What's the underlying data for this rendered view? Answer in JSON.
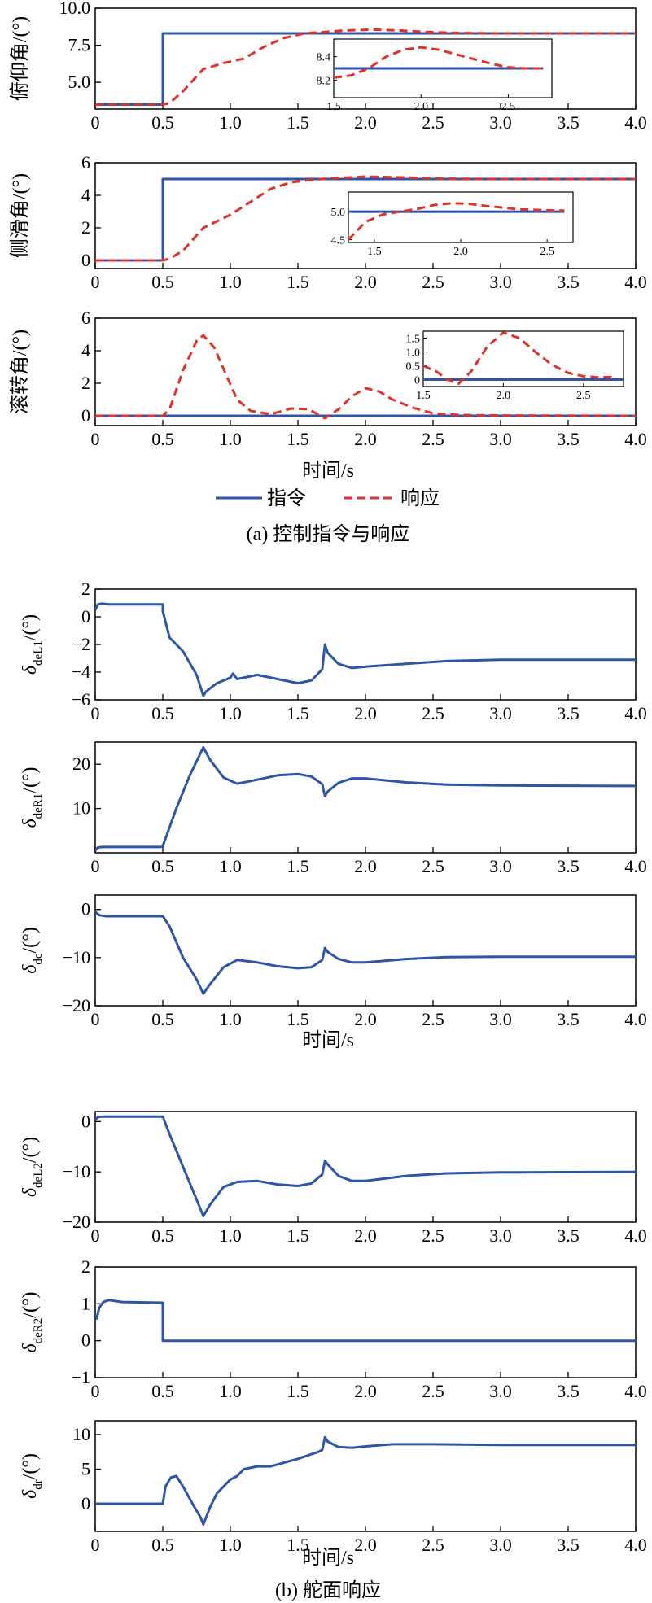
{
  "colors": {
    "command": "#2e56a6",
    "response": "#e0312b",
    "axis": "#000000"
  },
  "figure_a": {
    "caption": "(a) 控制指令与响应",
    "xlabel": "时间/s",
    "legend": {
      "command": "指令",
      "response": "响应"
    }
  },
  "figure_b": {
    "caption": "(b) 舵面响应",
    "xlabel_1": "时间/s",
    "xlabel_2": "时间/s"
  },
  "chart_data": [
    {
      "type": "line",
      "ylabel": "俯仰角/(°)",
      "xlim": [
        0,
        4
      ],
      "ylim": [
        3.2,
        10.0
      ],
      "yticks": [
        5.0,
        7.5,
        10.0
      ],
      "ytick_labels": [
        "5.0",
        "7.5",
        "10.0"
      ],
      "xticks": [
        0,
        0.5,
        1.0,
        1.5,
        2.0,
        2.5,
        3.0,
        3.5,
        4.0
      ],
      "xtick_labels": [
        "0",
        "0.5",
        "1.0",
        "1.5",
        "2.0",
        "2.5",
        "3.0",
        "3.5",
        "4.0"
      ],
      "series": [
        {
          "name": "指令",
          "style": "solid",
          "x": [
            0,
            0.5,
            0.5,
            4.0
          ],
          "y": [
            3.5,
            3.5,
            8.3,
            8.3
          ]
        },
        {
          "name": "响应",
          "style": "dashed",
          "x": [
            0,
            0.5,
            0.55,
            0.65,
            0.8,
            0.95,
            1.1,
            1.25,
            1.4,
            1.55,
            1.7,
            1.85,
            2.05,
            2.25,
            2.45,
            2.7,
            3.0,
            3.5,
            4.0
          ],
          "y": [
            3.5,
            3.5,
            3.6,
            4.4,
            5.9,
            6.3,
            6.6,
            7.4,
            8.0,
            8.3,
            8.4,
            8.5,
            8.55,
            8.5,
            8.4,
            8.32,
            8.3,
            8.3,
            8.3
          ]
        }
      ],
      "inset": {
        "xlim": [
          1.5,
          2.75
        ],
        "ylim": [
          8.05,
          8.55
        ],
        "xticks": [
          1.5,
          2.0,
          2.5
        ],
        "xtick_labels": [
          "1.5",
          "2.0",
          "2.5"
        ],
        "yticks": [
          8.2,
          8.4
        ],
        "ytick_labels": [
          "8.2",
          "8.4"
        ],
        "series": [
          {
            "style": "solid",
            "x": [
              1.5,
              2.7
            ],
            "y": [
              8.3,
              8.3
            ]
          },
          {
            "style": "dashed",
            "x": [
              1.5,
              1.6,
              1.7,
              1.8,
              1.9,
              2.0,
              2.1,
              2.2,
              2.3,
              2.4,
              2.5,
              2.6,
              2.7
            ],
            "y": [
              8.22,
              8.24,
              8.3,
              8.4,
              8.46,
              8.48,
              8.46,
              8.42,
              8.38,
              8.34,
              8.31,
              8.3,
              8.3
            ]
          }
        ]
      }
    },
    {
      "type": "line",
      "ylabel": "侧滑角/(°)",
      "xlim": [
        0,
        4
      ],
      "ylim": [
        -0.5,
        6
      ],
      "yticks": [
        0,
        2,
        4,
        6
      ],
      "ytick_labels": [
        "0",
        "2",
        "4",
        "6"
      ],
      "xticks": [
        0,
        0.5,
        1.0,
        1.5,
        2.0,
        2.5,
        3.0,
        3.5,
        4.0
      ],
      "xtick_labels": [
        "0",
        "0.5",
        "1.0",
        "1.5",
        "2.0",
        "2.5",
        "3.0",
        "3.5",
        "4.0"
      ],
      "series": [
        {
          "name": "指令",
          "style": "solid",
          "x": [
            0,
            0.5,
            0.5,
            4.0
          ],
          "y": [
            0,
            0,
            5.0,
            5.0
          ]
        },
        {
          "name": "响应",
          "style": "dashed",
          "x": [
            0,
            0.5,
            0.55,
            0.65,
            0.8,
            1.0,
            1.15,
            1.3,
            1.45,
            1.6,
            1.75,
            1.9,
            2.0,
            2.15,
            2.35,
            2.6,
            3.0,
            4.0
          ],
          "y": [
            0,
            0,
            0.1,
            0.6,
            2.0,
            2.8,
            3.6,
            4.4,
            4.8,
            4.95,
            5.05,
            5.1,
            5.15,
            5.12,
            5.08,
            5.02,
            5.0,
            5.0
          ]
        }
      ],
      "inset": {
        "xlim": [
          1.35,
          2.65
        ],
        "ylim": [
          4.45,
          5.35
        ],
        "xticks": [
          1.5,
          2.0,
          2.5
        ],
        "xtick_labels": [
          "1.5",
          "2.0",
          "2.5"
        ],
        "yticks": [
          4.5,
          5.0
        ],
        "ytick_labels": [
          "4.5",
          "5.0"
        ],
        "series": [
          {
            "style": "solid",
            "x": [
              1.35,
              2.6
            ],
            "y": [
              5.0,
              5.0
            ]
          },
          {
            "style": "dashed",
            "x": [
              1.35,
              1.45,
              1.55,
              1.65,
              1.75,
              1.85,
              1.95,
              2.05,
              2.15,
              2.25,
              2.35,
              2.45,
              2.55,
              2.6
            ],
            "y": [
              4.5,
              4.82,
              4.95,
              5.0,
              5.05,
              5.12,
              5.15,
              5.14,
              5.1,
              5.07,
              5.04,
              5.03,
              5.02,
              5.02
            ]
          }
        ]
      }
    },
    {
      "type": "line",
      "ylabel": "滚转角/(°)",
      "xlim": [
        0,
        4
      ],
      "ylim": [
        -0.6,
        6
      ],
      "yticks": [
        0,
        2,
        4,
        6
      ],
      "ytick_labels": [
        "0",
        "2",
        "4",
        "6"
      ],
      "xticks": [
        0,
        0.5,
        1.0,
        1.5,
        2.0,
        2.5,
        3.0,
        3.5,
        4.0
      ],
      "xtick_labels": [
        "0",
        "0.5",
        "1.0",
        "1.5",
        "2.0",
        "2.5",
        "3.0",
        "3.5",
        "4.0"
      ],
      "series": [
        {
          "name": "指令",
          "style": "solid",
          "x": [
            0,
            4.0
          ],
          "y": [
            0,
            0
          ]
        },
        {
          "name": "响应",
          "style": "dashed",
          "x": [
            0,
            0.5,
            0.55,
            0.65,
            0.75,
            0.8,
            0.88,
            0.97,
            1.05,
            1.15,
            1.3,
            1.45,
            1.58,
            1.7,
            1.8,
            1.9,
            2.0,
            2.1,
            2.2,
            2.35,
            2.5,
            2.7,
            3.0,
            4.0
          ],
          "y": [
            0,
            0,
            0.4,
            2.8,
            4.6,
            4.95,
            4.2,
            2.5,
            1.0,
            0.3,
            0.1,
            0.45,
            0.4,
            -0.15,
            0.4,
            1.2,
            1.7,
            1.5,
            1.0,
            0.5,
            0.15,
            0.05,
            0.02,
            0
          ]
        }
      ],
      "inset": {
        "xlim": [
          1.5,
          2.75
        ],
        "ylim": [
          -0.25,
          1.75
        ],
        "xticks": [
          1.5,
          2.0,
          2.5
        ],
        "xtick_labels": [
          "1.5",
          "2.0",
          "2.5"
        ],
        "yticks": [
          0,
          0.5,
          1.0,
          1.5
        ],
        "ytick_labels": [
          "0",
          "0.5",
          "1.0",
          "1.5"
        ],
        "series": [
          {
            "style": "solid",
            "x": [
              1.5,
              2.75
            ],
            "y": [
              0,
              0
            ]
          },
          {
            "style": "dashed",
            "x": [
              1.5,
              1.58,
              1.65,
              1.72,
              1.8,
              1.9,
              2.0,
              2.1,
              2.2,
              2.3,
              2.4,
              2.5,
              2.6,
              2.7
            ],
            "y": [
              0.5,
              0.3,
              0.0,
              -0.15,
              0.3,
              1.2,
              1.7,
              1.5,
              1.0,
              0.55,
              0.25,
              0.12,
              0.08,
              0.1
            ]
          }
        ]
      }
    },
    {
      "type": "line",
      "ylabel_symbol": "δ",
      "ylabel_sub": "deL1",
      "ylabel_unit": "/(°)",
      "xlim": [
        0,
        4
      ],
      "ylim": [
        -6,
        2
      ],
      "yticks": [
        -6,
        -4,
        -2,
        0,
        2
      ],
      "ytick_labels": [
        "−6",
        "−4",
        "−2",
        "0",
        "2"
      ],
      "xticks": [
        0,
        0.5,
        1.0,
        1.5,
        2.0,
        2.5,
        3.0,
        3.5,
        4.0
      ],
      "xtick_labels": [
        "0",
        "0.5",
        "1.0",
        "1.5",
        "2.0",
        "2.5",
        "3.0",
        "3.5",
        "4.0"
      ],
      "series": [
        {
          "style": "solid",
          "x": [
            0,
            0.02,
            0.05,
            0.1,
            0.5,
            0.5,
            0.55,
            0.65,
            0.75,
            0.8,
            0.82,
            0.9,
            1.0,
            1.02,
            1.05,
            1.2,
            1.35,
            1.5,
            1.6,
            1.68,
            1.7,
            1.72,
            1.8,
            1.9,
            2.0,
            2.3,
            2.6,
            3.0,
            4.0
          ],
          "y": [
            0.5,
            0.9,
            0.95,
            0.9,
            0.9,
            0.4,
            -1.5,
            -2.5,
            -4.2,
            -5.7,
            -5.4,
            -4.8,
            -4.4,
            -4.1,
            -4.5,
            -4.2,
            -4.5,
            -4.8,
            -4.6,
            -3.8,
            -2.0,
            -2.6,
            -3.4,
            -3.7,
            -3.6,
            -3.4,
            -3.2,
            -3.1,
            -3.1
          ]
        }
      ]
    },
    {
      "type": "line",
      "ylabel_symbol": "δ",
      "ylabel_sub": "deR1",
      "ylabel_unit": "/(°)",
      "xlim": [
        0,
        4
      ],
      "ylim": [
        0,
        25
      ],
      "yticks": [
        10,
        20
      ],
      "ytick_labels": [
        "10",
        "20"
      ],
      "xticks": [
        0,
        0.5,
        1.0,
        1.5,
        2.0,
        2.5,
        3.0,
        3.5,
        4.0
      ],
      "xtick_labels": [
        "0",
        "0.5",
        "1.0",
        "1.5",
        "2.0",
        "2.5",
        "3.0",
        "3.5",
        "4.0"
      ],
      "series": [
        {
          "style": "solid",
          "x": [
            0,
            0.02,
            0.05,
            0.5,
            0.5,
            0.6,
            0.7,
            0.8,
            0.85,
            0.95,
            1.05,
            1.2,
            1.35,
            1.5,
            1.6,
            1.68,
            1.7,
            1.72,
            1.8,
            1.9,
            2.0,
            2.3,
            2.6,
            3.0,
            4.0
          ],
          "y": [
            0.5,
            1.2,
            1.3,
            1.3,
            1.5,
            10.0,
            17.5,
            23.8,
            21.0,
            17.0,
            15.6,
            16.5,
            17.5,
            17.8,
            17.2,
            15.5,
            12.8,
            13.8,
            15.8,
            16.8,
            16.8,
            15.9,
            15.4,
            15.2,
            15.1
          ]
        }
      ]
    },
    {
      "type": "line",
      "ylabel_symbol": "δ",
      "ylabel_sub": "dc",
      "ylabel_unit": "/(°)",
      "xlim": [
        0,
        4
      ],
      "ylim": [
        -20,
        3
      ],
      "yticks": [
        -20,
        -10,
        0
      ],
      "ytick_labels": [
        "−20",
        "−10",
        "0"
      ],
      "xticks": [
        0,
        0.5,
        1.0,
        1.5,
        2.0,
        2.5,
        3.0,
        3.5,
        4.0
      ],
      "xtick_labels": [
        "0",
        "0.5",
        "1.0",
        "1.5",
        "2.0",
        "2.5",
        "3.0",
        "3.5",
        "4.0"
      ],
      "series": [
        {
          "style": "solid",
          "x": [
            0,
            0.03,
            0.08,
            0.5,
            0.55,
            0.65,
            0.75,
            0.8,
            0.85,
            0.95,
            1.05,
            1.2,
            1.35,
            1.5,
            1.6,
            1.68,
            1.7,
            1.72,
            1.8,
            1.9,
            2.0,
            2.3,
            2.6,
            3.0,
            4.0
          ],
          "y": [
            -0.5,
            -1.2,
            -1.4,
            -1.4,
            -3.5,
            -10.0,
            -14.5,
            -17.5,
            -15.5,
            -12.0,
            -10.5,
            -11.0,
            -11.8,
            -12.2,
            -12.0,
            -10.5,
            -8.0,
            -8.8,
            -10.3,
            -11.0,
            -11.0,
            -10.3,
            -9.9,
            -9.8,
            -9.8
          ]
        }
      ]
    },
    {
      "type": "line",
      "ylabel_symbol": "δ",
      "ylabel_sub": "deL2",
      "ylabel_unit": "/(°)",
      "xlim": [
        0,
        4
      ],
      "ylim": [
        -20,
        2
      ],
      "yticks": [
        -20,
        -10,
        0
      ],
      "ytick_labels": [
        "−20",
        "−10",
        "0"
      ],
      "xticks": [
        0,
        0.5,
        1.0,
        1.5,
        2.0,
        2.5,
        3.0,
        3.5,
        4.0
      ],
      "xtick_labels": [
        "0",
        "0.5",
        "1.0",
        "1.5",
        "2.0",
        "2.5",
        "3.0",
        "3.5",
        "4.0"
      ],
      "series": [
        {
          "style": "solid",
          "x": [
            0,
            0.02,
            0.05,
            0.5,
            0.55,
            0.65,
            0.75,
            0.8,
            0.85,
            0.95,
            1.05,
            1.2,
            1.35,
            1.5,
            1.6,
            1.68,
            1.7,
            1.72,
            1.8,
            1.9,
            2.0,
            2.3,
            2.6,
            3.0,
            4.0
          ],
          "y": [
            0.3,
            0.9,
            1.0,
            1.0,
            -2.5,
            -9.0,
            -15.5,
            -18.8,
            -16.5,
            -13.0,
            -12.0,
            -11.8,
            -12.5,
            -12.8,
            -12.3,
            -10.5,
            -7.8,
            -8.5,
            -10.8,
            -11.8,
            -11.8,
            -10.8,
            -10.3,
            -10.1,
            -10.0
          ]
        }
      ]
    },
    {
      "type": "line",
      "ylabel_symbol": "δ",
      "ylabel_sub": "deR2",
      "ylabel_unit": "/(°)",
      "xlim": [
        0,
        4
      ],
      "ylim": [
        -1,
        2
      ],
      "yticks": [
        -1,
        0,
        1,
        2
      ],
      "ytick_labels": [
        "−1",
        "0",
        "1",
        "2"
      ],
      "xticks": [
        0,
        0.5,
        1.0,
        1.5,
        2.0,
        2.5,
        3.0,
        3.5,
        4.0
      ],
      "xtick_labels": [
        "0",
        "0.5",
        "1.0",
        "1.5",
        "2.0",
        "2.5",
        "3.0",
        "3.5",
        "4.0"
      ],
      "series": [
        {
          "style": "solid",
          "x": [
            0,
            0.01,
            0.03,
            0.06,
            0.1,
            0.2,
            0.5,
            0.5,
            4.0
          ],
          "y": [
            0.7,
            0.6,
            0.9,
            1.05,
            1.1,
            1.05,
            1.03,
            0.0,
            0.0
          ]
        }
      ]
    },
    {
      "type": "line",
      "ylabel_symbol": "δ",
      "ylabel_sub": "dr",
      "ylabel_unit": "/(°)",
      "xlim": [
        0,
        4
      ],
      "ylim": [
        -4,
        12
      ],
      "yticks": [
        0,
        5,
        10
      ],
      "ytick_labels": [
        "0",
        "5",
        "10"
      ],
      "xticks": [
        0,
        0.5,
        1.0,
        1.5,
        2.0,
        2.5,
        3.0,
        3.5,
        4.0
      ],
      "xtick_labels": [
        "0",
        "0.5",
        "1.0",
        "1.5",
        "2.0",
        "2.5",
        "3.0",
        "3.5",
        "4.0"
      ],
      "series": [
        {
          "style": "solid",
          "x": [
            0,
            0.5,
            0.52,
            0.56,
            0.6,
            0.65,
            0.72,
            0.78,
            0.8,
            0.85,
            0.9,
            1.0,
            1.05,
            1.1,
            1.2,
            1.3,
            1.5,
            1.65,
            1.68,
            1.7,
            1.72,
            1.8,
            1.9,
            2.0,
            2.2,
            2.5,
            3.0,
            4.0
          ],
          "y": [
            0,
            0,
            2.5,
            3.8,
            4.0,
            2.5,
            0.0,
            -2.0,
            -3.0,
            -0.5,
            1.5,
            3.5,
            4.0,
            5.0,
            5.4,
            5.4,
            6.5,
            7.5,
            7.8,
            9.6,
            9.0,
            8.2,
            8.1,
            8.3,
            8.6,
            8.6,
            8.5,
            8.5
          ]
        }
      ]
    }
  ]
}
